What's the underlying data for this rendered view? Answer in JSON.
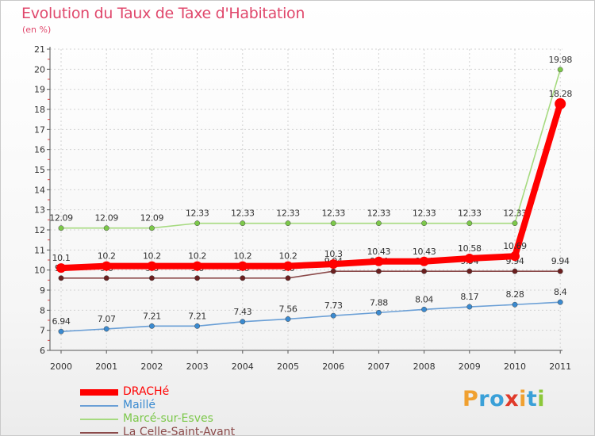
{
  "chart_data": {
    "type": "line",
    "title": "Evolution du Taux de Taxe d'Habitation",
    "subtitle": "(en %)",
    "xlabel": "",
    "ylabel": "",
    "categories": [
      "2000",
      "2001",
      "2002",
      "2003",
      "2004",
      "2005",
      "2006",
      "2007",
      "2008",
      "2009",
      "2010",
      "2011"
    ],
    "ylim": [
      6,
      21
    ],
    "yticks": [
      6,
      7,
      8,
      9,
      10,
      11,
      12,
      13,
      14,
      15,
      16,
      17,
      18,
      19,
      20,
      21
    ],
    "grid": true,
    "legend_position": "bottom-left",
    "series": [
      {
        "name": "DRACHé",
        "color": "#ff0000",
        "emphasis": true,
        "values": [
          10.1,
          10.2,
          10.2,
          10.2,
          10.2,
          10.2,
          10.3,
          10.43,
          10.43,
          10.58,
          10.69,
          18.28
        ],
        "labels": [
          "10.1",
          "10.2",
          "10.2",
          "10.2",
          "10.2",
          "10.2",
          "10.3",
          "10.43",
          "10.43",
          "10.58",
          "10.69",
          "18.28"
        ]
      },
      {
        "name": "Maillé",
        "color": "#6a9fd6",
        "marker_color": "#3a8ad0",
        "emphasis": false,
        "values": [
          6.94,
          7.07,
          7.21,
          7.21,
          7.43,
          7.56,
          7.73,
          7.88,
          8.04,
          8.17,
          8.28,
          8.4
        ],
        "labels": [
          "6.94",
          "7.07",
          "7.21",
          "7.21",
          "7.43",
          "7.56",
          "7.73",
          "7.88",
          "8.04",
          "8.17",
          "8.28",
          "8.4"
        ]
      },
      {
        "name": "Marcé-sur-Esves",
        "color": "#a6da80",
        "marker_color": "#7cc84a",
        "emphasis": false,
        "values": [
          12.09,
          12.09,
          12.09,
          12.33,
          12.33,
          12.33,
          12.33,
          12.33,
          12.33,
          12.33,
          12.33,
          19.98
        ],
        "labels": [
          "12.09",
          "12.09",
          "12.09",
          "12.33",
          "12.33",
          "12.33",
          "12.33",
          "12.33",
          "12.33",
          "12.33",
          "12.33",
          "19.98"
        ]
      },
      {
        "name": "La Celle-Saint-Avant",
        "color": "#8b4a4a",
        "marker_color": "#6b1f1f",
        "emphasis": false,
        "values": [
          9.6,
          9.6,
          9.6,
          9.6,
          9.6,
          9.6,
          9.94,
          9.94,
          9.94,
          9.94,
          9.94,
          9.94
        ],
        "labels": [
          "9.6",
          "9.6",
          "9.6",
          "9.6",
          "9.6",
          "9.6",
          "9.94",
          "9.94",
          "9.94",
          "9.94",
          "9.94",
          "9.94"
        ]
      }
    ]
  },
  "logo": {
    "letters": [
      "P",
      "r",
      "o",
      "x",
      "i",
      "t",
      "i"
    ],
    "colors": [
      "#f0a030",
      "#3aa0d8",
      "#3aa0d8",
      "#e03a2a",
      "#f0a030",
      "#3aa0d8",
      "#8cc83a"
    ]
  }
}
